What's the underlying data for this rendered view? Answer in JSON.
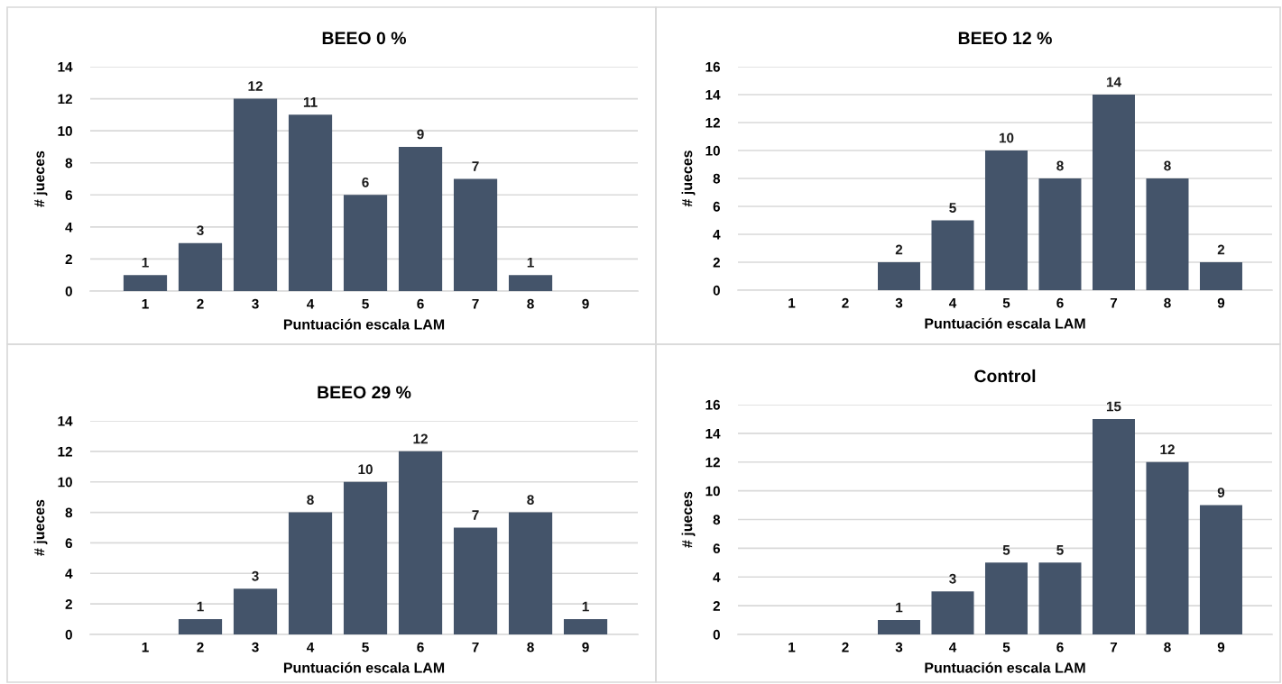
{
  "chart_data": [
    {
      "type": "bar",
      "title": "BEEO 0 %",
      "xlabel": "Puntuación escala LAM",
      "ylabel": "# jueces",
      "categories": [
        "1",
        "2",
        "3",
        "4",
        "5",
        "6",
        "7",
        "8",
        "9"
      ],
      "values": [
        1,
        3,
        12,
        11,
        6,
        9,
        7,
        1,
        null
      ],
      "color": "#44546a",
      "ylim": [
        0,
        14
      ],
      "yticks": [
        0,
        2,
        4,
        6,
        8,
        10,
        12,
        14
      ],
      "grid": "y",
      "data_labels": true
    },
    {
      "type": "bar",
      "title": "BEEO 12 %",
      "xlabel": "Puntuación escala LAM",
      "ylabel": "# jueces",
      "categories": [
        "1",
        "2",
        "3",
        "4",
        "5",
        "6",
        "7",
        "8",
        "9"
      ],
      "values": [
        null,
        null,
        2,
        5,
        10,
        8,
        14,
        8,
        2
      ],
      "color": "#44546a",
      "ylim": [
        0,
        16
      ],
      "yticks": [
        0,
        2,
        4,
        6,
        8,
        10,
        12,
        14,
        16
      ],
      "grid": "y",
      "data_labels": true
    },
    {
      "type": "bar",
      "title": "BEEO 29 %",
      "xlabel": "Puntuación escala LAM",
      "ylabel": "# jueces",
      "categories": [
        "1",
        "2",
        "3",
        "4",
        "5",
        "6",
        "7",
        "8",
        "9"
      ],
      "values": [
        null,
        1,
        3,
        8,
        10,
        12,
        7,
        8,
        1
      ],
      "color": "#44546a",
      "ylim": [
        0,
        14
      ],
      "yticks": [
        0,
        2,
        4,
        6,
        8,
        10,
        12,
        14
      ],
      "grid": "y",
      "data_labels": true
    },
    {
      "type": "bar",
      "title": "Control",
      "xlabel": "Puntuación escala LAM",
      "ylabel": "# jueces",
      "categories": [
        "1",
        "2",
        "3",
        "4",
        "5",
        "6",
        "7",
        "8",
        "9"
      ],
      "values": [
        null,
        null,
        1,
        3,
        5,
        5,
        15,
        12,
        9
      ],
      "color": "#44546a",
      "ylim": [
        0,
        16
      ],
      "yticks": [
        0,
        2,
        4,
        6,
        8,
        10,
        12,
        14,
        16
      ],
      "grid": "y",
      "data_labels": true
    }
  ]
}
